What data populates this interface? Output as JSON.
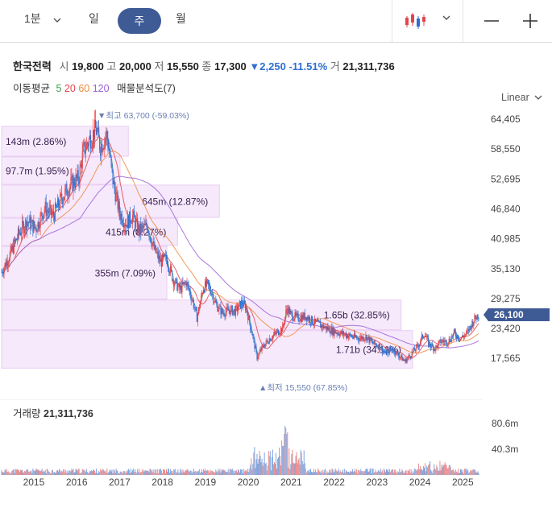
{
  "toolbar": {
    "interval_label": "1분",
    "tabs": [
      "일",
      "주",
      "월"
    ],
    "active_tab": "주",
    "icons": [
      "chevron-down-icon",
      "candlestick-icon",
      "minus-icon",
      "plus-icon"
    ]
  },
  "stock": {
    "name": "한국전력",
    "open_label": "시",
    "open": "19,800",
    "high_label": "고",
    "high": "20,000",
    "low_label": "저",
    "low": "15,550",
    "close_label": "종",
    "close": "17,300",
    "change": "▼2,250",
    "change_pct": "-11.51%",
    "volume_label": "거",
    "volume": "21,311,736"
  },
  "indicators": {
    "ma_label": "이동평균",
    "ma_periods": [
      "5",
      "20",
      "60",
      "120"
    ],
    "ma_colors": [
      "#36a34a",
      "#e3464d",
      "#f08a3c",
      "#9a62d6"
    ],
    "profile_label": "매물분석도(7)"
  },
  "scale_label": "Linear",
  "chart_data": {
    "type": "candlestick",
    "y_ticks": [
      "64,405",
      "58,550",
      "52,695",
      "46,840",
      "40,985",
      "35,130",
      "29,275",
      "23,420",
      "17,565"
    ],
    "ylim": [
      15550,
      64405
    ],
    "current_price": "26,100",
    "current_price_value": 26100,
    "x_ticks": [
      "2015",
      "2016",
      "2017",
      "2018",
      "2019",
      "2020",
      "2021",
      "2022",
      "2023",
      "2024",
      "2025"
    ],
    "high_marker": "▼최고 63,700 (-59.03%)",
    "low_marker": "▲최저 15,550 (67.85%)",
    "price_path": [
      [
        2014.3,
        34500
      ],
      [
        2014.5,
        38000
      ],
      [
        2014.7,
        42000
      ],
      [
        2014.9,
        44500
      ],
      [
        2015.1,
        43000
      ],
      [
        2015.3,
        47000
      ],
      [
        2015.5,
        45500
      ],
      [
        2015.7,
        49000
      ],
      [
        2015.9,
        51500
      ],
      [
        2016.1,
        53000
      ],
      [
        2016.2,
        58000
      ],
      [
        2016.35,
        60500
      ],
      [
        2016.5,
        62500
      ],
      [
        2016.6,
        59000
      ],
      [
        2016.75,
        61500
      ],
      [
        2016.9,
        52000
      ],
      [
        2017.05,
        46000
      ],
      [
        2017.2,
        44000
      ],
      [
        2017.35,
        45500
      ],
      [
        2017.5,
        42500
      ],
      [
        2017.7,
        43500
      ],
      [
        2017.85,
        39000
      ],
      [
        2018.0,
        36500
      ],
      [
        2018.15,
        37000
      ],
      [
        2018.3,
        33000
      ],
      [
        2018.45,
        31000
      ],
      [
        2018.6,
        32500
      ],
      [
        2018.75,
        29000
      ],
      [
        2018.85,
        25500
      ],
      [
        2019.0,
        31500
      ],
      [
        2019.1,
        32000
      ],
      [
        2019.2,
        30500
      ],
      [
        2019.3,
        28000
      ],
      [
        2019.45,
        26500
      ],
      [
        2019.6,
        27000
      ],
      [
        2019.75,
        26800
      ],
      [
        2019.9,
        28500
      ],
      [
        2020.0,
        27500
      ],
      [
        2020.15,
        22000
      ],
      [
        2020.25,
        17800
      ],
      [
        2020.4,
        20000
      ],
      [
        2020.55,
        21500
      ],
      [
        2020.7,
        22500
      ],
      [
        2020.85,
        23500
      ],
      [
        2020.95,
        27500
      ],
      [
        2021.05,
        26000
      ],
      [
        2021.2,
        25500
      ],
      [
        2021.4,
        25800
      ],
      [
        2021.6,
        24500
      ],
      [
        2021.8,
        23800
      ],
      [
        2022.0,
        23000
      ],
      [
        2022.2,
        22500
      ],
      [
        2022.4,
        22000
      ],
      [
        2022.6,
        21500
      ],
      [
        2022.8,
        21800
      ],
      [
        2022.95,
        20500
      ],
      [
        2023.1,
        20000
      ],
      [
        2023.25,
        18500
      ],
      [
        2023.4,
        19500
      ],
      [
        2023.55,
        18200
      ],
      [
        2023.7,
        17000
      ],
      [
        2023.85,
        18500
      ],
      [
        2024.0,
        20000
      ],
      [
        2024.15,
        22500
      ],
      [
        2024.25,
        20500
      ],
      [
        2024.4,
        19500
      ],
      [
        2024.55,
        21000
      ],
      [
        2024.7,
        20800
      ],
      [
        2024.85,
        22500
      ],
      [
        2025.0,
        21500
      ],
      [
        2025.15,
        22500
      ],
      [
        2025.3,
        25000
      ],
      [
        2025.4,
        26100
      ]
    ],
    "volume_profile": [
      {
        "label": "143m (2.86%)",
        "low": 57000,
        "high": 63000,
        "fraction": 0.0286
      },
      {
        "label": "97.7m (1.95%)",
        "low": 51500,
        "high": 57000,
        "fraction": 0.0195
      },
      {
        "label": "645m (12.87%)",
        "low": 45000,
        "high": 51500,
        "fraction": 0.1287
      },
      {
        "label": "415m (8.27%)",
        "low": 39500,
        "high": 45000,
        "fraction": 0.0827
      },
      {
        "label": "355m (7.09%)",
        "low": 29000,
        "high": 39500,
        "fraction": 0.0709
      },
      {
        "label": "1.65b (32.85%)",
        "low": 23000,
        "high": 29000,
        "fraction": 0.3285
      },
      {
        "label": "1.71b (34.11%)",
        "low": 15500,
        "high": 23000,
        "fraction": 0.3411
      }
    ]
  },
  "volume_panel": {
    "title": "거래량",
    "value": "21,311,736",
    "y_ticks": [
      "80.6m",
      "40.3m"
    ]
  }
}
